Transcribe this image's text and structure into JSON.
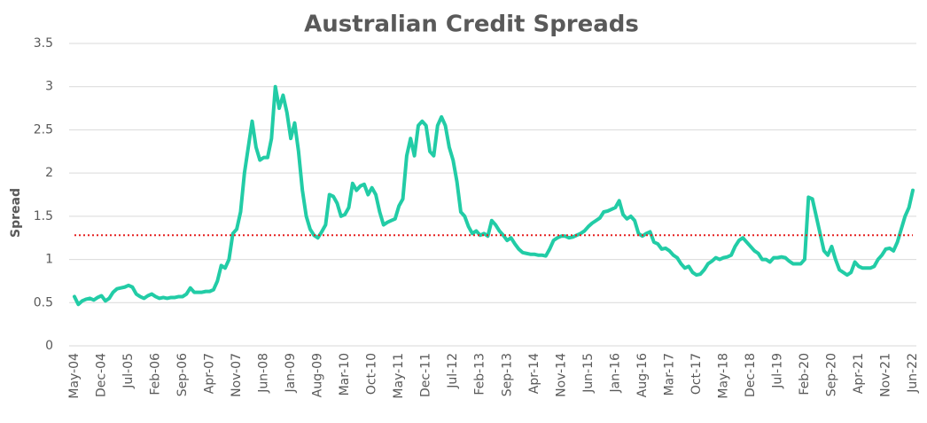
{
  "chart_data": {
    "type": "line",
    "title": "Australian Credit Spreads",
    "y_label": "Spread",
    "categories": [
      "May-04",
      null,
      null,
      null,
      null,
      null,
      null,
      "Dec-04",
      null,
      null,
      null,
      null,
      null,
      null,
      "Jul-05",
      null,
      null,
      null,
      null,
      null,
      null,
      "Feb-06",
      null,
      null,
      null,
      null,
      null,
      null,
      "Sep-06",
      null,
      null,
      null,
      null,
      null,
      null,
      "Apr-07",
      null,
      null,
      null,
      null,
      null,
      null,
      "Nov-07",
      null,
      null,
      null,
      null,
      null,
      null,
      "Jun-08",
      null,
      null,
      null,
      null,
      null,
      null,
      "Jan-09",
      null,
      null,
      null,
      null,
      null,
      null,
      "Aug-09",
      null,
      null,
      null,
      null,
      null,
      null,
      "Mar-10",
      null,
      null,
      null,
      null,
      null,
      null,
      "Oct-10",
      null,
      null,
      null,
      null,
      null,
      null,
      "May-11",
      null,
      null,
      null,
      null,
      null,
      null,
      "Dec-11",
      null,
      null,
      null,
      null,
      null,
      null,
      "Jul-12",
      null,
      null,
      null,
      null,
      null,
      null,
      "Feb-13",
      null,
      null,
      null,
      null,
      null,
      null,
      "Sep-13",
      null,
      null,
      null,
      null,
      null,
      null,
      "Apr-14",
      null,
      null,
      null,
      null,
      null,
      null,
      "Nov-14",
      null,
      null,
      null,
      null,
      null,
      null,
      "Jun-15",
      null,
      null,
      null,
      null,
      null,
      null,
      "Jan-16",
      null,
      null,
      null,
      null,
      null,
      null,
      "Aug-16",
      null,
      null,
      null,
      null,
      null,
      null,
      "Mar-17",
      null,
      null,
      null,
      null,
      null,
      null,
      "Oct-17",
      null,
      null,
      null,
      null,
      null,
      null,
      "May-18",
      null,
      null,
      null,
      null,
      null,
      null,
      "Dec-18",
      null,
      null,
      null,
      null,
      null,
      null,
      "Jul-19",
      null,
      null,
      null,
      null,
      null,
      null,
      "Feb-20",
      null,
      null,
      null,
      null,
      null,
      null,
      "Sep-20",
      null,
      null,
      null,
      null,
      null,
      null,
      "Apr-21",
      null,
      null,
      null,
      null,
      null,
      null,
      "Nov-21",
      null,
      null,
      null,
      null,
      null,
      null,
      "Jun-22"
    ],
    "values": [
      0.57,
      0.48,
      0.52,
      0.54,
      0.55,
      0.53,
      0.56,
      0.58,
      0.52,
      0.55,
      0.62,
      0.66,
      0.67,
      0.68,
      0.7,
      0.68,
      0.6,
      0.57,
      0.55,
      0.58,
      0.6,
      0.57,
      0.55,
      0.56,
      0.55,
      0.56,
      0.56,
      0.57,
      0.57,
      0.6,
      0.67,
      0.62,
      0.62,
      0.62,
      0.63,
      0.63,
      0.65,
      0.75,
      0.93,
      0.9,
      1.0,
      1.3,
      1.35,
      1.55,
      2.0,
      2.3,
      2.6,
      2.3,
      2.15,
      2.18,
      2.18,
      2.4,
      3.0,
      2.75,
      2.9,
      2.7,
      2.4,
      2.58,
      2.25,
      1.8,
      1.5,
      1.35,
      1.28,
      1.25,
      1.32,
      1.4,
      1.75,
      1.73,
      1.65,
      1.5,
      1.52,
      1.6,
      1.88,
      1.8,
      1.85,
      1.87,
      1.75,
      1.83,
      1.75,
      1.55,
      1.4,
      1.43,
      1.45,
      1.47,
      1.62,
      1.7,
      2.2,
      2.4,
      2.2,
      2.55,
      2.6,
      2.55,
      2.25,
      2.2,
      2.55,
      2.65,
      2.55,
      2.3,
      2.15,
      1.9,
      1.55,
      1.5,
      1.38,
      1.3,
      1.33,
      1.28,
      1.3,
      1.27,
      1.45,
      1.4,
      1.33,
      1.28,
      1.22,
      1.25,
      1.18,
      1.12,
      1.08,
      1.07,
      1.06,
      1.06,
      1.05,
      1.05,
      1.04,
      1.12,
      1.22,
      1.25,
      1.27,
      1.27,
      1.25,
      1.26,
      1.28,
      1.3,
      1.33,
      1.38,
      1.42,
      1.45,
      1.48,
      1.55,
      1.56,
      1.58,
      1.6,
      1.68,
      1.52,
      1.47,
      1.5,
      1.45,
      1.3,
      1.27,
      1.3,
      1.32,
      1.2,
      1.18,
      1.12,
      1.13,
      1.1,
      1.05,
      1.02,
      0.95,
      0.9,
      0.92,
      0.85,
      0.82,
      0.83,
      0.88,
      0.95,
      0.98,
      1.02,
      1.0,
      1.02,
      1.03,
      1.05,
      1.15,
      1.22,
      1.25,
      1.2,
      1.15,
      1.1,
      1.07,
      1.0,
      1.0,
      0.97,
      1.02,
      1.02,
      1.03,
      1.02,
      0.98,
      0.95,
      0.95,
      0.95,
      1.0,
      1.72,
      1.7,
      1.5,
      1.3,
      1.1,
      1.05,
      1.15,
      1.0,
      0.88,
      0.85,
      0.82,
      0.85,
      0.97,
      0.92,
      0.9,
      0.9,
      0.9,
      0.92,
      1.0,
      1.05,
      1.12,
      1.13,
      1.1,
      1.2,
      1.35,
      1.5,
      1.6,
      1.8
    ],
    "color": "#22cca6",
    "reference_line": 1.28,
    "reference_color": "#e62020",
    "ylim": [
      0,
      3.5
    ],
    "yticks": [
      0,
      0.5,
      1,
      1.5,
      2,
      2.5,
      3,
      3.5
    ],
    "grid": true
  }
}
